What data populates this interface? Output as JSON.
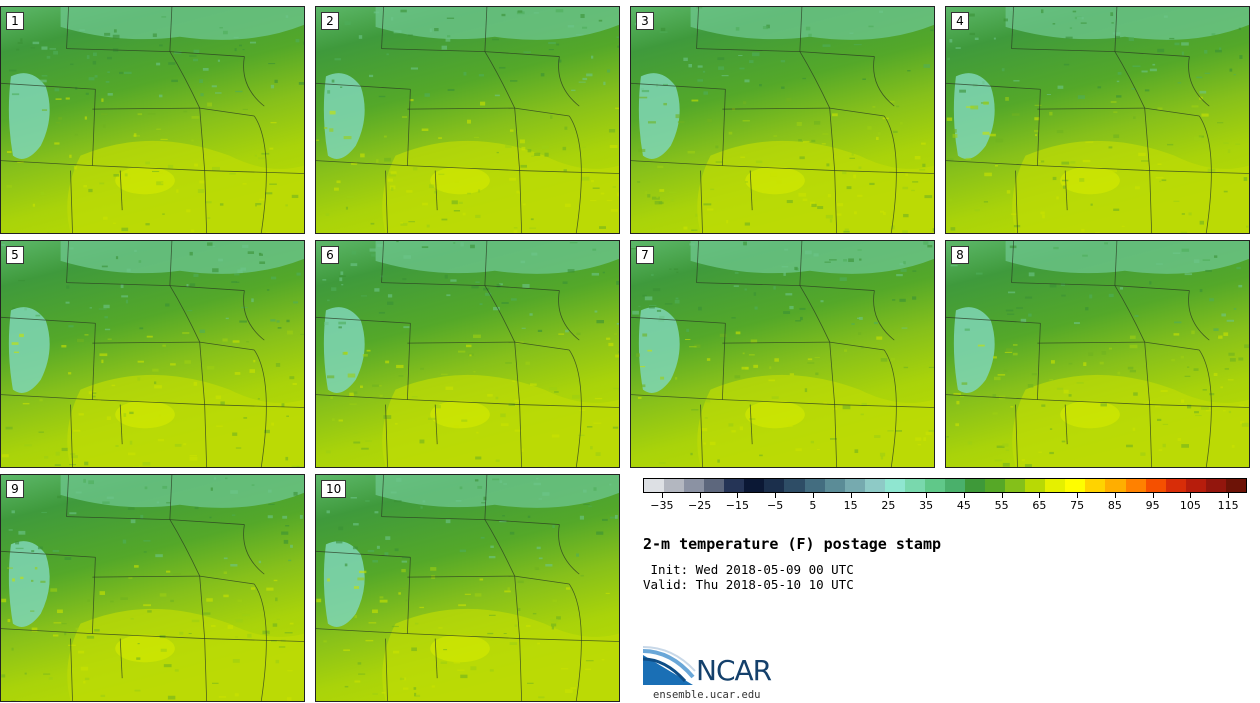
{
  "panels": [
    "1",
    "2",
    "3",
    "4",
    "5",
    "6",
    "7",
    "8",
    "9",
    "10"
  ],
  "colorbar": {
    "colors": [
      "#dde0e4",
      "#b3b7c0",
      "#8b92a3",
      "#5d677d",
      "#253456",
      "#0b1835",
      "#1b2f4c",
      "#2e4d66",
      "#436d80",
      "#5b8c97",
      "#76aaaf",
      "#8ecac6",
      "#8fe6d0",
      "#79d8ad",
      "#60c889",
      "#4ab06b",
      "#3e9939",
      "#56a827",
      "#84c01a",
      "#b8d905",
      "#e5f000",
      "#fffd00",
      "#ffd300",
      "#ffae00",
      "#ff8100",
      "#f55000",
      "#d82d08",
      "#b71d0c",
      "#93160d",
      "#6d1307"
    ],
    "ticks": [
      "-35",
      "-25",
      "-15",
      "-5",
      "5",
      "15",
      "25",
      "35",
      "45",
      "55",
      "65",
      "75",
      "85",
      "95",
      "105",
      "115"
    ],
    "min": -40,
    "max": 120
  },
  "title": "2-m temperature (F) postage stamp",
  "init": " Init: Wed 2018-05-09 00 UTC",
  "valid": "Valid: Thu 2018-05-10 10 UTC",
  "logo_text": "NCAR",
  "url": "ensemble.ucar.edu"
}
